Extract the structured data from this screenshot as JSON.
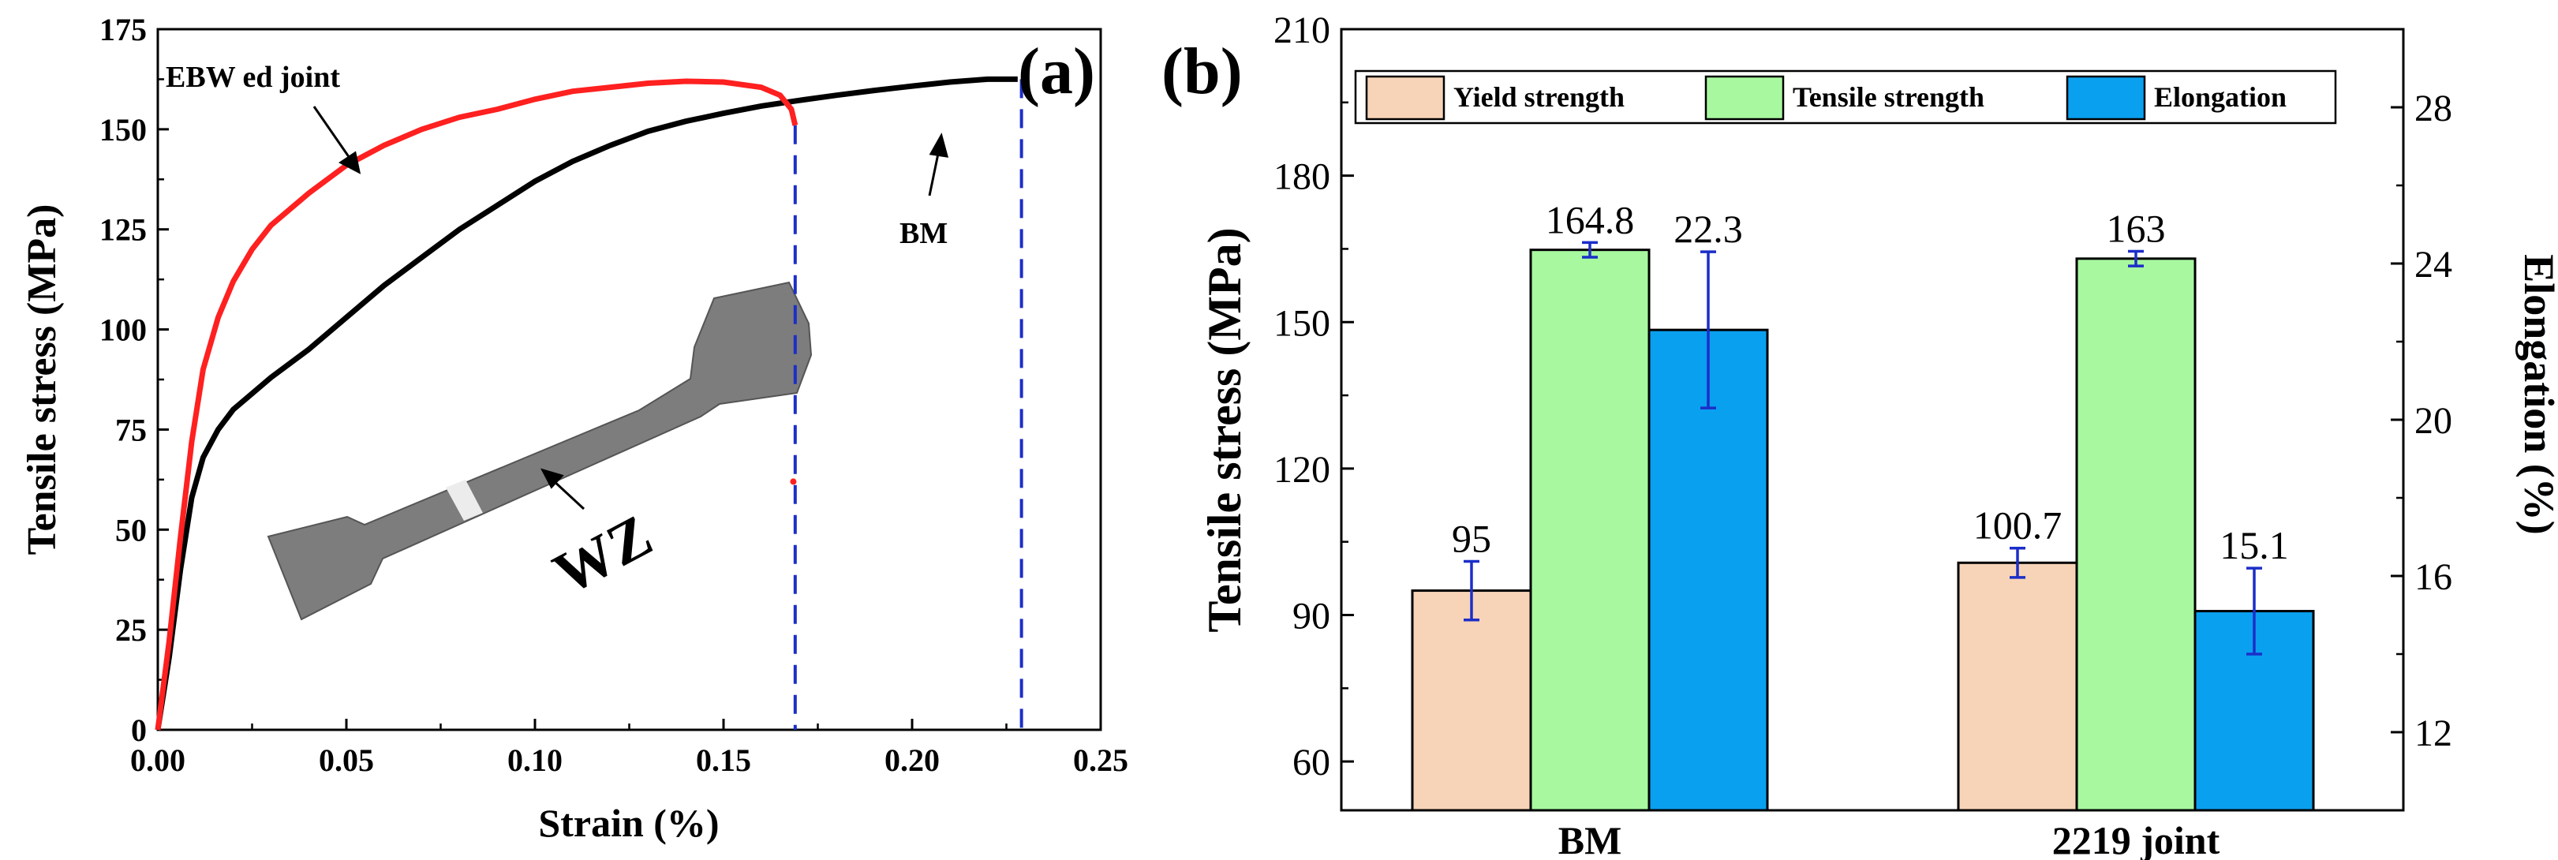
{
  "chart_data": [
    {
      "panel_label": "(a)",
      "type": "line",
      "xlabel": "Strain (%)",
      "ylabel": "Tensile stress (MPa)",
      "xlim": [
        0,
        0.25
      ],
      "ylim": [
        0,
        175
      ],
      "x_ticks": [
        "0.00",
        "0.05",
        "0.10",
        "0.15",
        "0.20",
        "0.25"
      ],
      "y_ticks": [
        "0",
        "25",
        "50",
        "75",
        "100",
        "125",
        "150",
        "175"
      ],
      "series": [
        {
          "name": "EBWed joint",
          "color": "#ff2020",
          "points": [
            [
              0.0,
              0
            ],
            [
              0.003,
              22
            ],
            [
              0.006,
              48
            ],
            [
              0.009,
              72
            ],
            [
              0.012,
              90
            ],
            [
              0.016,
              103
            ],
            [
              0.02,
              112
            ],
            [
              0.025,
              120
            ],
            [
              0.03,
              126
            ],
            [
              0.04,
              134
            ],
            [
              0.05,
              141
            ],
            [
              0.06,
              146
            ],
            [
              0.07,
              150
            ],
            [
              0.08,
              153
            ],
            [
              0.09,
              155
            ],
            [
              0.1,
              157.5
            ],
            [
              0.11,
              159.5
            ],
            [
              0.12,
              160.5
            ],
            [
              0.13,
              161.5
            ],
            [
              0.14,
              162
            ],
            [
              0.15,
              161.8
            ],
            [
              0.16,
              160.5
            ],
            [
              0.165,
              158.5
            ],
            [
              0.168,
              155
            ],
            [
              0.169,
              151
            ]
          ],
          "fracture_point": [
            0.1685,
            62
          ]
        },
        {
          "name": "BM",
          "color": "#000000",
          "points": [
            [
              0.0,
              0
            ],
            [
              0.003,
              18
            ],
            [
              0.006,
              40
            ],
            [
              0.009,
              58
            ],
            [
              0.012,
              68
            ],
            [
              0.016,
              75
            ],
            [
              0.02,
              80
            ],
            [
              0.03,
              88
            ],
            [
              0.04,
              95
            ],
            [
              0.05,
              103
            ],
            [
              0.06,
              111
            ],
            [
              0.07,
              118
            ],
            [
              0.08,
              125
            ],
            [
              0.09,
              131
            ],
            [
              0.1,
              137
            ],
            [
              0.11,
              142
            ],
            [
              0.12,
              146
            ],
            [
              0.13,
              149.5
            ],
            [
              0.14,
              152
            ],
            [
              0.15,
              154
            ],
            [
              0.16,
              155.8
            ],
            [
              0.17,
              157.2
            ],
            [
              0.18,
              158.5
            ],
            [
              0.19,
              159.7
            ],
            [
              0.2,
              160.8
            ],
            [
              0.21,
              161.8
            ],
            [
              0.22,
              162.5
            ],
            [
              0.228,
              162.5
            ]
          ]
        }
      ],
      "fracture_strain_lines": [
        0.169,
        0.229
      ],
      "annotations": [
        "EBW ed joint",
        "BM",
        "WZ"
      ],
      "inset": "photograph of tensile specimen"
    },
    {
      "panel_label": "(b)",
      "type": "bar",
      "categories": [
        "BM",
        "2219 joint"
      ],
      "ylabel_left": "Tensile stress (MPa)",
      "ylabel_right": "Elongation (%)",
      "ylim_left": [
        50,
        210
      ],
      "ylim_right": [
        10,
        30
      ],
      "y_ticks_left": [
        "60",
        "90",
        "120",
        "150",
        "180",
        "210"
      ],
      "y_ticks_right": [
        "12",
        "16",
        "20",
        "24",
        "28"
      ],
      "series": [
        {
          "name": "Yield strength",
          "axis": "left",
          "color": "#f7d4b8",
          "values": [
            95,
            100.7
          ],
          "labels": [
            "95",
            "100.7"
          ],
          "errors": [
            6,
            3
          ]
        },
        {
          "name": "Tensile strength",
          "axis": "left",
          "color": "#a8f8a0",
          "values": [
            164.8,
            163
          ],
          "labels": [
            "164.8",
            "163"
          ],
          "errors": [
            1.5,
            1.5
          ]
        },
        {
          "name": "Elongation",
          "axis": "right",
          "color": "#0aa0f0",
          "values": [
            22.3,
            15.1
          ],
          "labels": [
            "22.3",
            "15.1"
          ],
          "errors": [
            2.0,
            1.1
          ]
        }
      ]
    }
  ]
}
